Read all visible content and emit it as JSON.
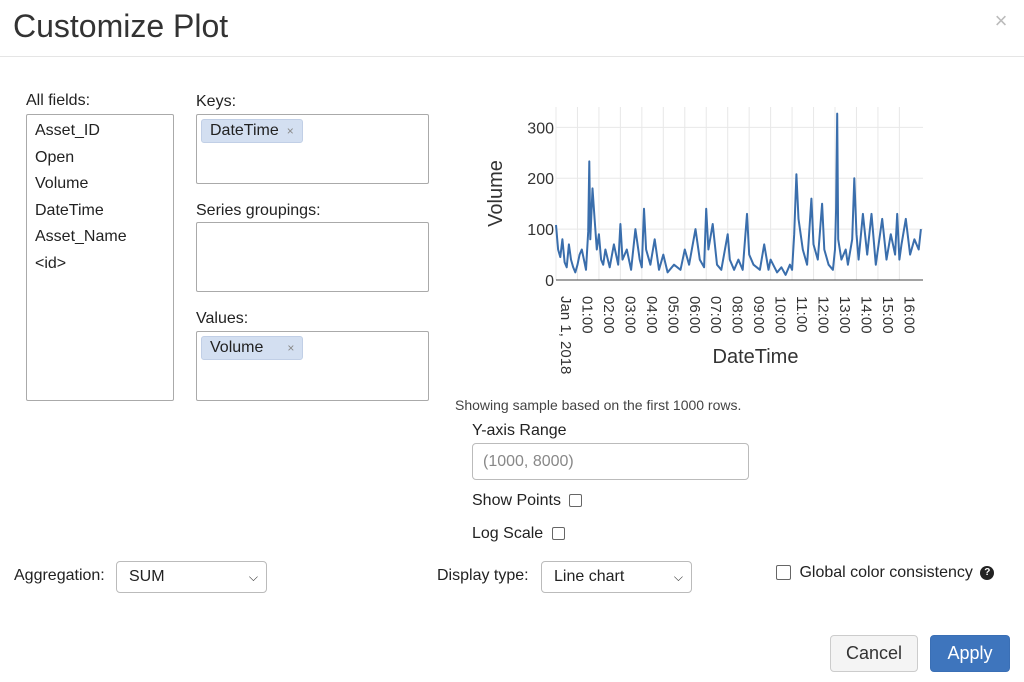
{
  "dialog": {
    "title": "Customize Plot",
    "close_glyph": "×"
  },
  "fields": {
    "label": "All fields:",
    "items": [
      "Asset_ID",
      "Open",
      "Volume",
      "DateTime",
      "Asset_Name",
      "<id>"
    ]
  },
  "keys": {
    "label": "Keys:",
    "tags": [
      "DateTime"
    ]
  },
  "series_groupings": {
    "label": "Series groupings:",
    "tags": []
  },
  "values": {
    "label": "Values:",
    "tags": [
      "Volume"
    ]
  },
  "tag_remove_glyph": "×",
  "chart_note": "Showing sample based on the first 1000 rows.",
  "yaxis_range": {
    "label": "Y-axis Range",
    "placeholder": "(1000, 8000)"
  },
  "show_points": {
    "label": "Show Points",
    "checked": false
  },
  "log_scale": {
    "label": "Log Scale",
    "checked": false
  },
  "aggregation": {
    "label": "Aggregation:",
    "selected": "SUM"
  },
  "display_type": {
    "label": "Display type:",
    "selected": "Line chart"
  },
  "global_color": {
    "label": "Global color consistency",
    "checked": false,
    "help_glyph": "?"
  },
  "buttons": {
    "cancel": "Cancel",
    "apply": "Apply"
  },
  "colors": {
    "line": "#3a6eac",
    "accent": "#3e75bd",
    "tag_bg": "#d3dff1"
  },
  "chart_data": {
    "type": "line",
    "xlabel": "DateTime",
    "ylabel": "Volume",
    "ylim": [
      0,
      340
    ],
    "yticks": [
      0,
      100,
      200,
      300
    ],
    "x_start_label": "Jan 1, 2018",
    "xticks": [
      "01:00",
      "02:00",
      "03:00",
      "04:00",
      "05:00",
      "06:00",
      "07:00",
      "08:00",
      "09:00",
      "10:00",
      "11:00",
      "12:00",
      "13:00",
      "14:00",
      "15:00",
      "16:00"
    ],
    "xlim_hours": [
      0,
      17.1
    ],
    "grid": true,
    "series": [
      {
        "points": [
          [
            0.0,
            108
          ],
          [
            0.1,
            60
          ],
          [
            0.2,
            45
          ],
          [
            0.3,
            80
          ],
          [
            0.4,
            35
          ],
          [
            0.5,
            25
          ],
          [
            0.6,
            70
          ],
          [
            0.7,
            40
          ],
          [
            0.8,
            25
          ],
          [
            0.9,
            15
          ],
          [
            1.0,
            30
          ],
          [
            1.1,
            50
          ],
          [
            1.2,
            60
          ],
          [
            1.3,
            40
          ],
          [
            1.4,
            20
          ],
          [
            1.5,
            95
          ],
          [
            1.55,
            233
          ],
          [
            1.6,
            80
          ],
          [
            1.7,
            180
          ],
          [
            1.8,
            120
          ],
          [
            1.9,
            60
          ],
          [
            2.0,
            90
          ],
          [
            2.1,
            40
          ],
          [
            2.2,
            30
          ],
          [
            2.3,
            60
          ],
          [
            2.5,
            25
          ],
          [
            2.7,
            70
          ],
          [
            2.9,
            30
          ],
          [
            3.0,
            110
          ],
          [
            3.1,
            40
          ],
          [
            3.3,
            60
          ],
          [
            3.5,
            20
          ],
          [
            3.7,
            100
          ],
          [
            3.9,
            40
          ],
          [
            4.0,
            25
          ],
          [
            4.1,
            140
          ],
          [
            4.2,
            60
          ],
          [
            4.4,
            30
          ],
          [
            4.6,
            80
          ],
          [
            4.8,
            20
          ],
          [
            5.0,
            50
          ],
          [
            5.2,
            15
          ],
          [
            5.5,
            30
          ],
          [
            5.8,
            20
          ],
          [
            6.0,
            60
          ],
          [
            6.2,
            30
          ],
          [
            6.5,
            100
          ],
          [
            6.7,
            40
          ],
          [
            6.9,
            25
          ],
          [
            7.0,
            140
          ],
          [
            7.1,
            60
          ],
          [
            7.3,
            110
          ],
          [
            7.5,
            30
          ],
          [
            7.7,
            20
          ],
          [
            8.0,
            90
          ],
          [
            8.1,
            40
          ],
          [
            8.3,
            20
          ],
          [
            8.5,
            40
          ],
          [
            8.7,
            20
          ],
          [
            8.9,
            130
          ],
          [
            9.0,
            50
          ],
          [
            9.2,
            30
          ],
          [
            9.5,
            20
          ],
          [
            9.7,
            70
          ],
          [
            9.9,
            20
          ],
          [
            10.0,
            40
          ],
          [
            10.3,
            15
          ],
          [
            10.5,
            25
          ],
          [
            10.7,
            10
          ],
          [
            10.9,
            30
          ],
          [
            11.0,
            20
          ],
          [
            11.1,
            90
          ],
          [
            11.2,
            208
          ],
          [
            11.3,
            120
          ],
          [
            11.5,
            60
          ],
          [
            11.7,
            30
          ],
          [
            11.9,
            160
          ],
          [
            12.0,
            70
          ],
          [
            12.2,
            40
          ],
          [
            12.4,
            150
          ],
          [
            12.5,
            60
          ],
          [
            12.7,
            30
          ],
          [
            12.9,
            20
          ],
          [
            13.0,
            60
          ],
          [
            13.05,
            140
          ],
          [
            13.1,
            327
          ],
          [
            13.15,
            80
          ],
          [
            13.3,
            40
          ],
          [
            13.5,
            60
          ],
          [
            13.6,
            30
          ],
          [
            13.8,
            80
          ],
          [
            13.9,
            200
          ],
          [
            14.0,
            90
          ],
          [
            14.1,
            40
          ],
          [
            14.3,
            130
          ],
          [
            14.5,
            50
          ],
          [
            14.7,
            130
          ],
          [
            14.9,
            30
          ],
          [
            15.0,
            60
          ],
          [
            15.2,
            120
          ],
          [
            15.4,
            40
          ],
          [
            15.6,
            90
          ],
          [
            15.8,
            50
          ],
          [
            15.9,
            130
          ],
          [
            16.0,
            40
          ],
          [
            16.1,
            70
          ],
          [
            16.3,
            120
          ],
          [
            16.5,
            50
          ],
          [
            16.7,
            80
          ],
          [
            16.9,
            60
          ],
          [
            17.0,
            100
          ]
        ]
      }
    ]
  }
}
